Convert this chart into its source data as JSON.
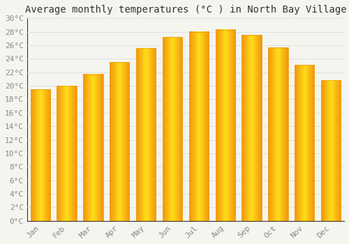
{
  "title": "Average monthly temperatures (°C ) in North Bay Village",
  "months": [
    "Jan",
    "Feb",
    "Mar",
    "Apr",
    "May",
    "Jun",
    "Jul",
    "Aug",
    "Sep",
    "Oct",
    "Nov",
    "Dec"
  ],
  "values": [
    19.5,
    20.0,
    21.7,
    23.5,
    25.6,
    27.2,
    28.0,
    28.3,
    27.5,
    25.7,
    23.1,
    20.8
  ],
  "bar_color_center": "#FFD700",
  "bar_color_edge": "#F0A010",
  "ylim": [
    0,
    30
  ],
  "ytick_step": 2,
  "background_color": "#F5F5F0",
  "plot_bg_color": "#F5F5F0",
  "grid_color": "#DDDDDD",
  "title_fontsize": 10,
  "tick_fontsize": 8,
  "tick_color": "#888888",
  "font_family": "monospace",
  "bar_width": 0.75
}
